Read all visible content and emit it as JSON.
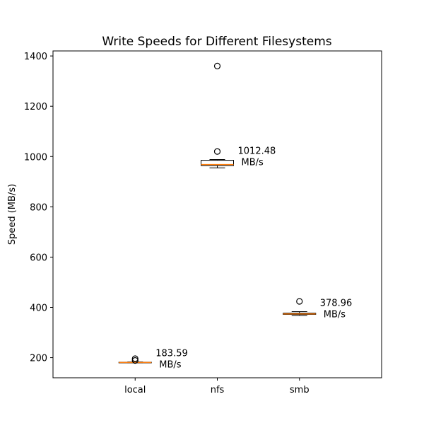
{
  "chart_data": {
    "type": "box",
    "title": "Write Speeds for Different Filesystems",
    "xlabel": "",
    "ylabel": "Speed (MB/s)",
    "ylim": [
      120,
      1420
    ],
    "yticks": [
      200,
      400,
      600,
      800,
      1000,
      1200,
      1400
    ],
    "grid": false,
    "categories": [
      "local",
      "nfs",
      "smb"
    ],
    "boxes": [
      {
        "category": "local",
        "whisker_low": 179,
        "q1": 180,
        "median": 181,
        "q3": 182,
        "whisker_high": 183,
        "outliers": [
          189,
          196
        ],
        "annotation": [
          "183.59",
          "MB/s"
        ]
      },
      {
        "category": "nfs",
        "whisker_low": 955,
        "q1": 964,
        "median": 968,
        "q3": 985,
        "whisker_high": 988,
        "outliers": [
          1020,
          1360
        ],
        "annotation": [
          "1012.48",
          "MB/s"
        ]
      },
      {
        "category": "smb",
        "whisker_low": 368,
        "q1": 372,
        "median": 374,
        "q3": 377,
        "whisker_high": 383,
        "outliers": [
          424
        ],
        "annotation": [
          "378.96",
          "MB/s"
        ]
      }
    ],
    "colors": {
      "box": "#000000",
      "median": "#ff7f0e",
      "outlier": "#000000"
    }
  }
}
